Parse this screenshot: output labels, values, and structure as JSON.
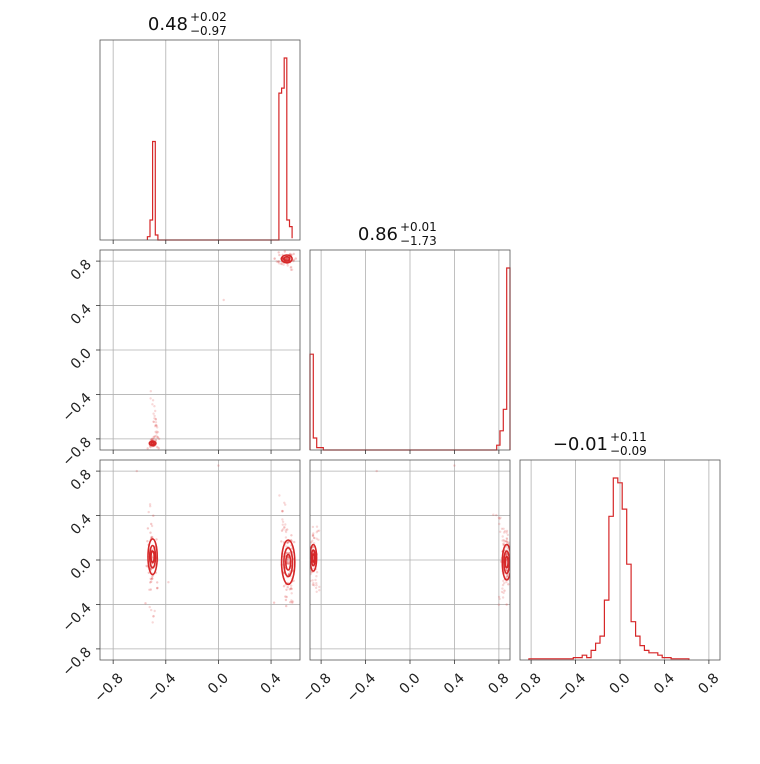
{
  "chart_data": {
    "type": "corner",
    "color": "#d62728",
    "grid_color": "#b0b0b0",
    "params": [
      {
        "median": "0.48",
        "plus": "+0.02",
        "minus": "−0.97",
        "range": [
          -0.9,
          0.62
        ]
      },
      {
        "median": "0.86",
        "plus": "+0.01",
        "minus": "−1.73",
        "range": [
          -0.9,
          0.9
        ]
      },
      {
        "median": "−0.01",
        "plus": "+0.11",
        "minus": "−0.09",
        "range": [
          -0.9,
          0.9
        ]
      }
    ],
    "ticks": [
      -0.8,
      -0.4,
      0.0,
      0.4,
      0.8
    ],
    "tick_labels": [
      "−0.8",
      "−0.4",
      "0.0",
      "0.4",
      "0.8"
    ],
    "histograms": [
      {
        "param": 0,
        "edges": [
          -0.54,
          -0.52,
          -0.5,
          -0.48,
          -0.46,
          0.44,
          0.46,
          0.48,
          0.5,
          0.52,
          0.54,
          0.56
        ],
        "counts": [
          2,
          12,
          59,
          3,
          0,
          0,
          88,
          91,
          109,
          12,
          8,
          1
        ]
      },
      {
        "param": 1,
        "edges": [
          -0.9,
          -0.87,
          -0.84,
          -0.81,
          -0.78,
          0.78,
          0.81,
          0.84,
          0.87,
          0.9
        ],
        "counts": [
          40,
          5,
          1,
          1,
          0,
          2,
          8,
          17,
          76
        ]
      },
      {
        "param": 2,
        "edges": [
          -0.82,
          -0.78,
          -0.74,
          -0.7,
          -0.66,
          -0.62,
          -0.58,
          -0.54,
          -0.5,
          -0.46,
          -0.42,
          -0.38,
          -0.34,
          -0.3,
          -0.26,
          -0.22,
          -0.18,
          -0.14,
          -0.1,
          -0.06,
          -0.02,
          0.02,
          0.06,
          0.1,
          0.14,
          0.18,
          0.22,
          0.26,
          0.3,
          0.34,
          0.38,
          0.42,
          0.46,
          0.5,
          0.54,
          0.58,
          0.62
        ],
        "counts": [
          0.5,
          0.5,
          0.5,
          0.5,
          0.5,
          0.5,
          0.5,
          0.5,
          0.5,
          0.5,
          1,
          1,
          2,
          1,
          4,
          7,
          10,
          25,
          60,
          76,
          74,
          63,
          40,
          16,
          10,
          6,
          4,
          3,
          3,
          2,
          1,
          1,
          0.5,
          0.5,
          0.5,
          0.5
        ]
      }
    ],
    "panels2d": [
      {
        "x": 0,
        "y": 1,
        "clusters": [
          {
            "cx": 0.52,
            "cy": 0.82,
            "sx": 0.03,
            "sy": 0.02,
            "n": 70,
            "contours": [
              [
                0.04,
                0.035
              ],
              [
                0.022,
                0.02
              ]
            ]
          },
          {
            "cx": -0.5,
            "cy": -0.84,
            "sx": 0.02,
            "sy": 0.03,
            "n": 45,
            "contours": [
              [
                0.025,
                0.02
              ],
              [
                0.012,
                0.01
              ]
            ]
          }
        ],
        "tails": [
          {
            "x0": 0.42,
            "y0": 0.82,
            "x1": 0.58,
            "y1": 0.72,
            "n": 15
          },
          {
            "x0": -0.52,
            "y0": -0.35,
            "x1": -0.46,
            "y1": -0.8,
            "n": 25
          }
        ],
        "outliers": [
          [
            0.04,
            0.45
          ]
        ]
      },
      {
        "x": 0,
        "y": 2,
        "clusters": [
          {
            "cx": -0.5,
            "cy": 0.03,
            "sx": 0.02,
            "sy": 0.12,
            "n": 60,
            "contours": [
              [
                0.035,
                0.16
              ],
              [
                0.022,
                0.1
              ],
              [
                0.012,
                0.05
              ]
            ]
          },
          {
            "cx": 0.53,
            "cy": -0.02,
            "sx": 0.025,
            "sy": 0.15,
            "n": 80,
            "contours": [
              [
                0.05,
                0.2
              ],
              [
                0.033,
                0.13
              ],
              [
                0.018,
                0.07
              ]
            ]
          }
        ],
        "tails": [
          {
            "x0": -0.52,
            "y0": 0.5,
            "x1": -0.5,
            "y1": -0.55,
            "n": 25
          },
          {
            "x0": 0.48,
            "y0": 0.6,
            "x1": 0.56,
            "y1": -0.4,
            "n": 35
          }
        ],
        "outliers": [
          [
            -0.62,
            0.8
          ],
          [
            0.0,
            0.85
          ],
          [
            -0.38,
            -0.2
          ]
        ]
      },
      {
        "x": 1,
        "y": 2,
        "clusters": [
          {
            "cx": -0.87,
            "cy": 0.02,
            "sx": 0.015,
            "sy": 0.06,
            "n": 50,
            "contours": [
              [
                0.03,
                0.12
              ],
              [
                0.018,
                0.07
              ],
              [
                0.01,
                0.035
              ]
            ]
          },
          {
            "cx": 0.87,
            "cy": -0.02,
            "sx": 0.02,
            "sy": 0.12,
            "n": 70,
            "contours": [
              [
                0.04,
                0.16
              ],
              [
                0.025,
                0.1
              ],
              [
                0.013,
                0.05
              ]
            ]
          }
        ],
        "tails": [
          {
            "arc": true,
            "cx": 0.0,
            "cy": 0.0,
            "r": 0.88,
            "a0": -20,
            "a1": 20,
            "side": -1,
            "n": 45
          },
          {
            "arc": true,
            "cx": 0.0,
            "cy": 0.0,
            "r": 0.88,
            "a0": -28,
            "a1": 30,
            "side": 1,
            "n": 50
          }
        ],
        "outliers": [
          [
            -0.3,
            0.8
          ],
          [
            0.4,
            0.85
          ],
          [
            0.8,
            0.38
          ]
        ]
      }
    ]
  }
}
